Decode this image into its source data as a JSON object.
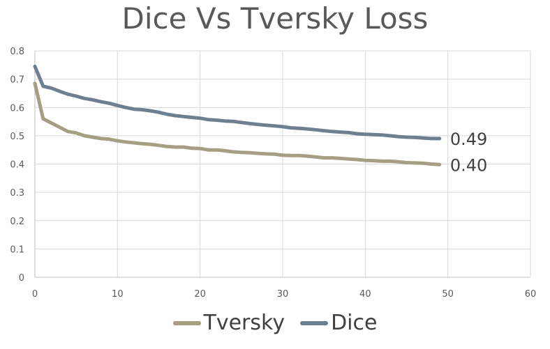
{
  "chart_data": {
    "type": "line",
    "title": "Dice Vs Tversky Loss",
    "xlabel": "",
    "ylabel": "",
    "xlim": [
      0,
      60
    ],
    "ylim": [
      0,
      0.8
    ],
    "xticks": [
      "0",
      "10",
      "20",
      "30",
      "40",
      "50",
      "60"
    ],
    "yticks": [
      "0",
      "0.1",
      "0.2",
      "0.3",
      "0.4",
      "0.5",
      "0.6",
      "0.7",
      "0.8"
    ],
    "grid": true,
    "legend_position": "bottom",
    "series": [
      {
        "name": "Tversky",
        "color": "#A69E82",
        "end_label": "0.40",
        "x": [
          0,
          1,
          2,
          3,
          4,
          5,
          6,
          7,
          8,
          9,
          10,
          11,
          12,
          13,
          14,
          15,
          16,
          17,
          18,
          19,
          20,
          21,
          22,
          23,
          24,
          25,
          26,
          27,
          28,
          29,
          30,
          31,
          32,
          33,
          34,
          35,
          36,
          37,
          38,
          39,
          40,
          41,
          42,
          43,
          44,
          45,
          46,
          47,
          48,
          49
        ],
        "values": [
          0.685,
          0.56,
          0.545,
          0.53,
          0.515,
          0.51,
          0.5,
          0.495,
          0.49,
          0.488,
          0.482,
          0.478,
          0.475,
          0.472,
          0.47,
          0.466,
          0.462,
          0.46,
          0.46,
          0.456,
          0.455,
          0.45,
          0.45,
          0.447,
          0.443,
          0.441,
          0.44,
          0.438,
          0.436,
          0.435,
          0.431,
          0.43,
          0.43,
          0.428,
          0.425,
          0.422,
          0.422,
          0.42,
          0.418,
          0.416,
          0.413,
          0.412,
          0.41,
          0.41,
          0.408,
          0.405,
          0.404,
          0.403,
          0.4,
          0.398
        ]
      },
      {
        "name": "Dice",
        "color": "#6E7F92",
        "end_label": "0.49",
        "x": [
          0,
          1,
          2,
          3,
          4,
          5,
          6,
          7,
          8,
          9,
          10,
          11,
          12,
          13,
          14,
          15,
          16,
          17,
          18,
          19,
          20,
          21,
          22,
          23,
          24,
          25,
          26,
          27,
          28,
          29,
          30,
          31,
          32,
          33,
          34,
          35,
          36,
          37,
          38,
          39,
          40,
          41,
          42,
          43,
          44,
          45,
          46,
          47,
          48,
          49
        ],
        "values": [
          0.745,
          0.675,
          0.668,
          0.657,
          0.647,
          0.64,
          0.632,
          0.627,
          0.62,
          0.615,
          0.607,
          0.6,
          0.594,
          0.592,
          0.588,
          0.583,
          0.576,
          0.571,
          0.568,
          0.565,
          0.562,
          0.557,
          0.555,
          0.552,
          0.551,
          0.547,
          0.543,
          0.54,
          0.537,
          0.535,
          0.532,
          0.528,
          0.526,
          0.524,
          0.521,
          0.518,
          0.515,
          0.513,
          0.511,
          0.507,
          0.505,
          0.504,
          0.503,
          0.5,
          0.497,
          0.495,
          0.494,
          0.492,
          0.49,
          0.49
        ]
      }
    ]
  }
}
